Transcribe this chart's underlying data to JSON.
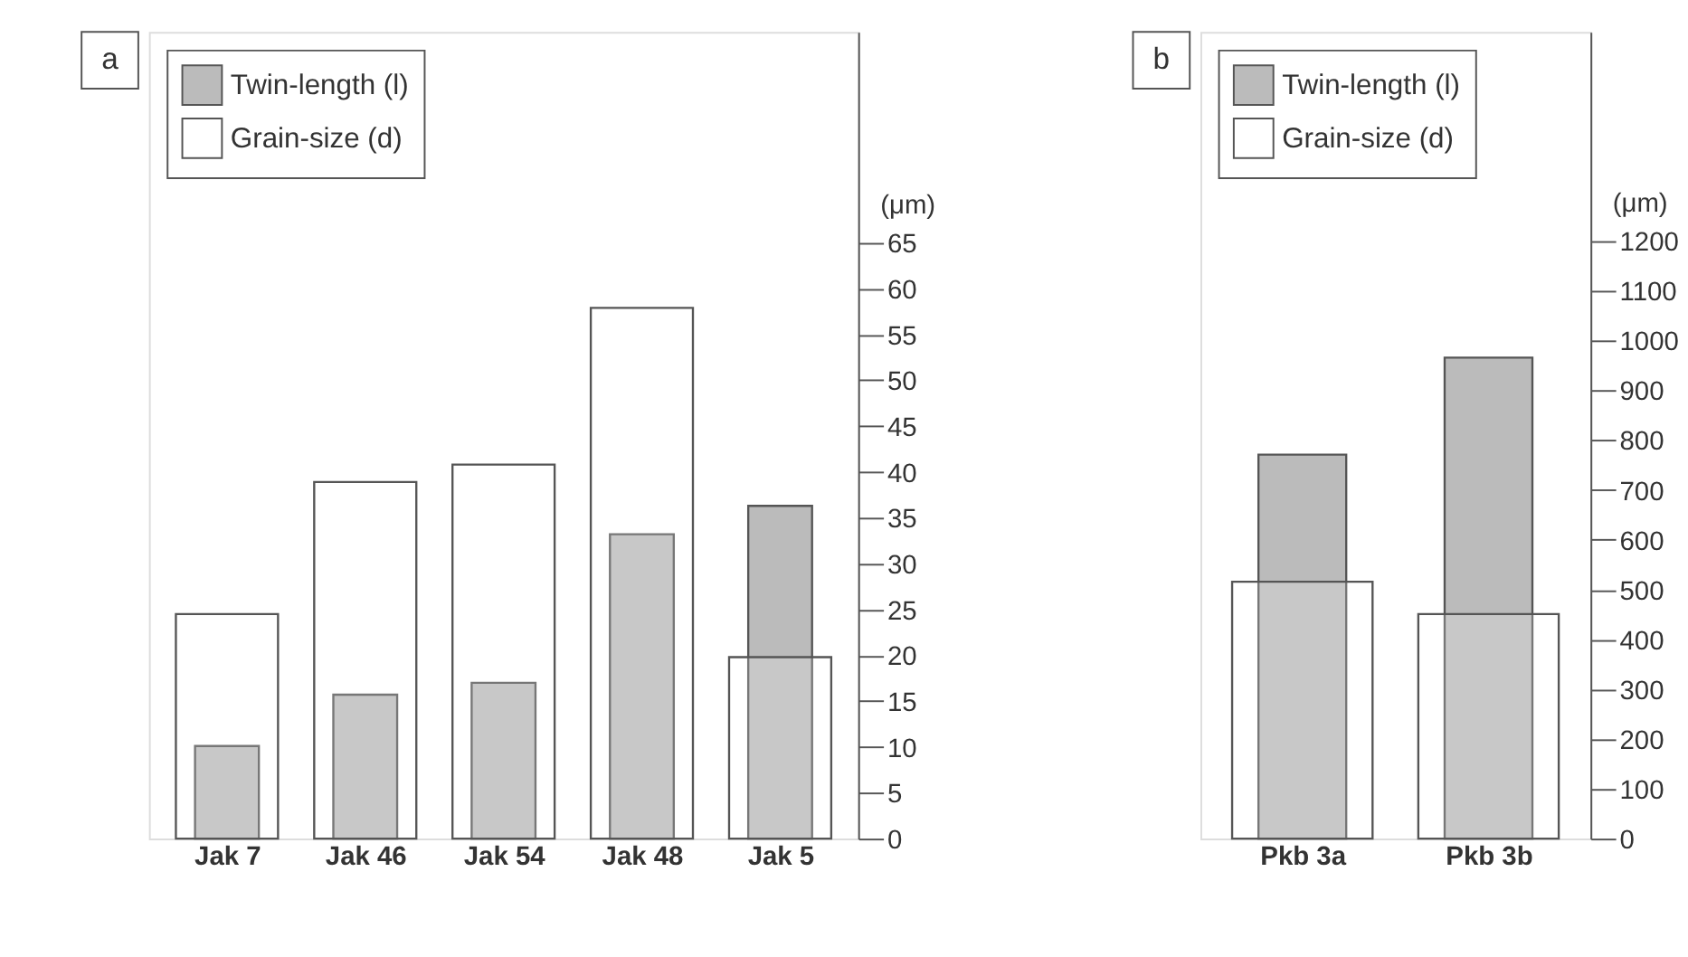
{
  "chart_data": [
    {
      "type": "bar",
      "annotations": [
        "a"
      ],
      "ylabel": "(μm)",
      "categories": [
        "Jak 7",
        "Jak 46",
        "Jak 54",
        "Jak 48",
        "Jak 5"
      ],
      "series": [
        {
          "name": "Twin-length (l)",
          "color": "#bbbbbb",
          "values": [
            10.1,
            15.7,
            17.0,
            33.2,
            36.3
          ]
        },
        {
          "name": "Grain-size (d)",
          "color": "#ffffff",
          "values": [
            24.5,
            38.9,
            40.8,
            57.9,
            19.8
          ]
        }
      ],
      "ylim": [
        0,
        88
      ],
      "yticks": [
        0,
        5,
        10,
        15,
        20,
        25,
        30,
        35,
        40,
        45,
        50,
        55,
        60,
        65
      ],
      "grid": false,
      "legend": "top left"
    },
    {
      "type": "bar",
      "annotations": [
        "b"
      ],
      "ylabel": "(μm)",
      "categories": [
        "Pkb 3a",
        "Pkb 3b"
      ],
      "series": [
        {
          "name": "Twin-length (l)",
          "color": "#bbbbbb",
          "values": [
            771,
            966
          ]
        },
        {
          "name": "Grain-size (d)",
          "color": "#ffffff",
          "values": [
            516,
            451
          ]
        }
      ],
      "ylim": [
        0,
        1620
      ],
      "yticks": [
        0,
        100,
        200,
        300,
        400,
        500,
        600,
        700,
        800,
        900,
        1000,
        1100,
        1200
      ],
      "grid": false,
      "legend": "top left"
    }
  ]
}
